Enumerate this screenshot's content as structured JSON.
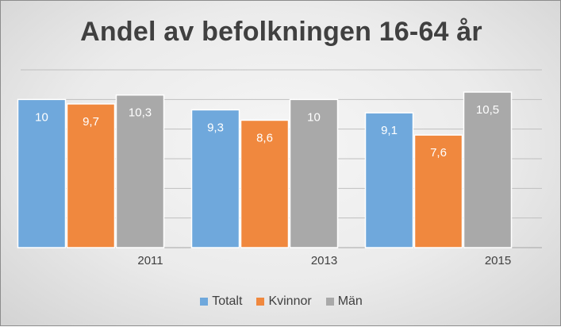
{
  "chart_data": {
    "type": "bar",
    "title": "Andel av befolkningen 16-64 år",
    "categories": [
      "2011",
      "2013",
      "2015"
    ],
    "series": [
      {
        "name": "Totalt",
        "color": "#6fa8dc",
        "values": [
          10,
          9.3,
          9.1
        ],
        "labels": [
          "10",
          "9,3",
          "9,1"
        ]
      },
      {
        "name": "Kvinnor",
        "color": "#f0883e",
        "values": [
          9.7,
          8.6,
          7.6
        ],
        "labels": [
          "9,7",
          "8,6",
          "7,6"
        ]
      },
      {
        "name": "Män",
        "color": "#a9a9a9",
        "values": [
          10.3,
          10,
          10.5
        ],
        "labels": [
          "10,3",
          "10",
          "10,5"
        ]
      }
    ],
    "ylim": [
      0,
      12
    ],
    "grid": true,
    "legend": "bottom"
  }
}
